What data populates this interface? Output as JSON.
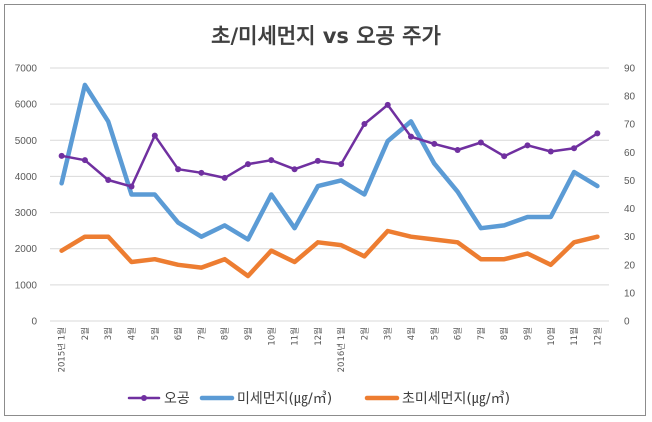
{
  "chart_data": {
    "type": "line",
    "title": "초/미세먼지 vs 오공 주가",
    "categories": [
      "2015년 1월",
      "2월",
      "3월",
      "4월",
      "5월",
      "6월",
      "7월",
      "8월",
      "9월",
      "10월",
      "11월",
      "12월",
      "2016년 1월",
      "2월",
      "3월",
      "4월",
      "5월",
      "6월",
      "7월",
      "8월",
      "9월",
      "10월",
      "11월",
      "12월"
    ],
    "y_left": {
      "ylim": [
        0,
        7000
      ],
      "ticks": [
        "0",
        "1000",
        "2000",
        "3000",
        "4000",
        "5000",
        "6000",
        "7000"
      ]
    },
    "y_right": {
      "ylim": [
        0,
        90
      ],
      "ticks": [
        "0",
        "10",
        "20",
        "30",
        "40",
        "50",
        "60",
        "70",
        "80",
        "90"
      ]
    },
    "grid": true,
    "legend_position": "bottom",
    "series": [
      {
        "name": "오공",
        "axis": "left",
        "color": "#7030a0",
        "width": 2.5,
        "markers": true,
        "values": [
          4570,
          4450,
          3900,
          3720,
          5130,
          4200,
          4100,
          3960,
          4340,
          4450,
          4200,
          4430,
          4340,
          5450,
          5980,
          5100,
          4900,
          4730,
          4940,
          4560,
          4860,
          4690,
          4780,
          5190
        ]
      },
      {
        "name": "미세먼지(㎍/㎥)",
        "axis": "right",
        "color": "#5b9bd5",
        "width": 4.5,
        "markers": false,
        "values": [
          49,
          84,
          71,
          45,
          45,
          35,
          30,
          34,
          29,
          45,
          33,
          48,
          50,
          45,
          64,
          71,
          56,
          46,
          33,
          34,
          37,
          37,
          53,
          48
        ]
      },
      {
        "name": "초미세먼지(㎍/㎥)",
        "axis": "right",
        "color": "#ed7d31",
        "width": 4.5,
        "markers": false,
        "values": [
          25,
          30,
          30,
          21,
          22,
          20,
          19,
          22,
          16,
          25,
          21,
          28,
          27,
          23,
          32,
          30,
          29,
          28,
          22,
          22,
          24,
          20,
          28,
          30
        ]
      }
    ]
  }
}
